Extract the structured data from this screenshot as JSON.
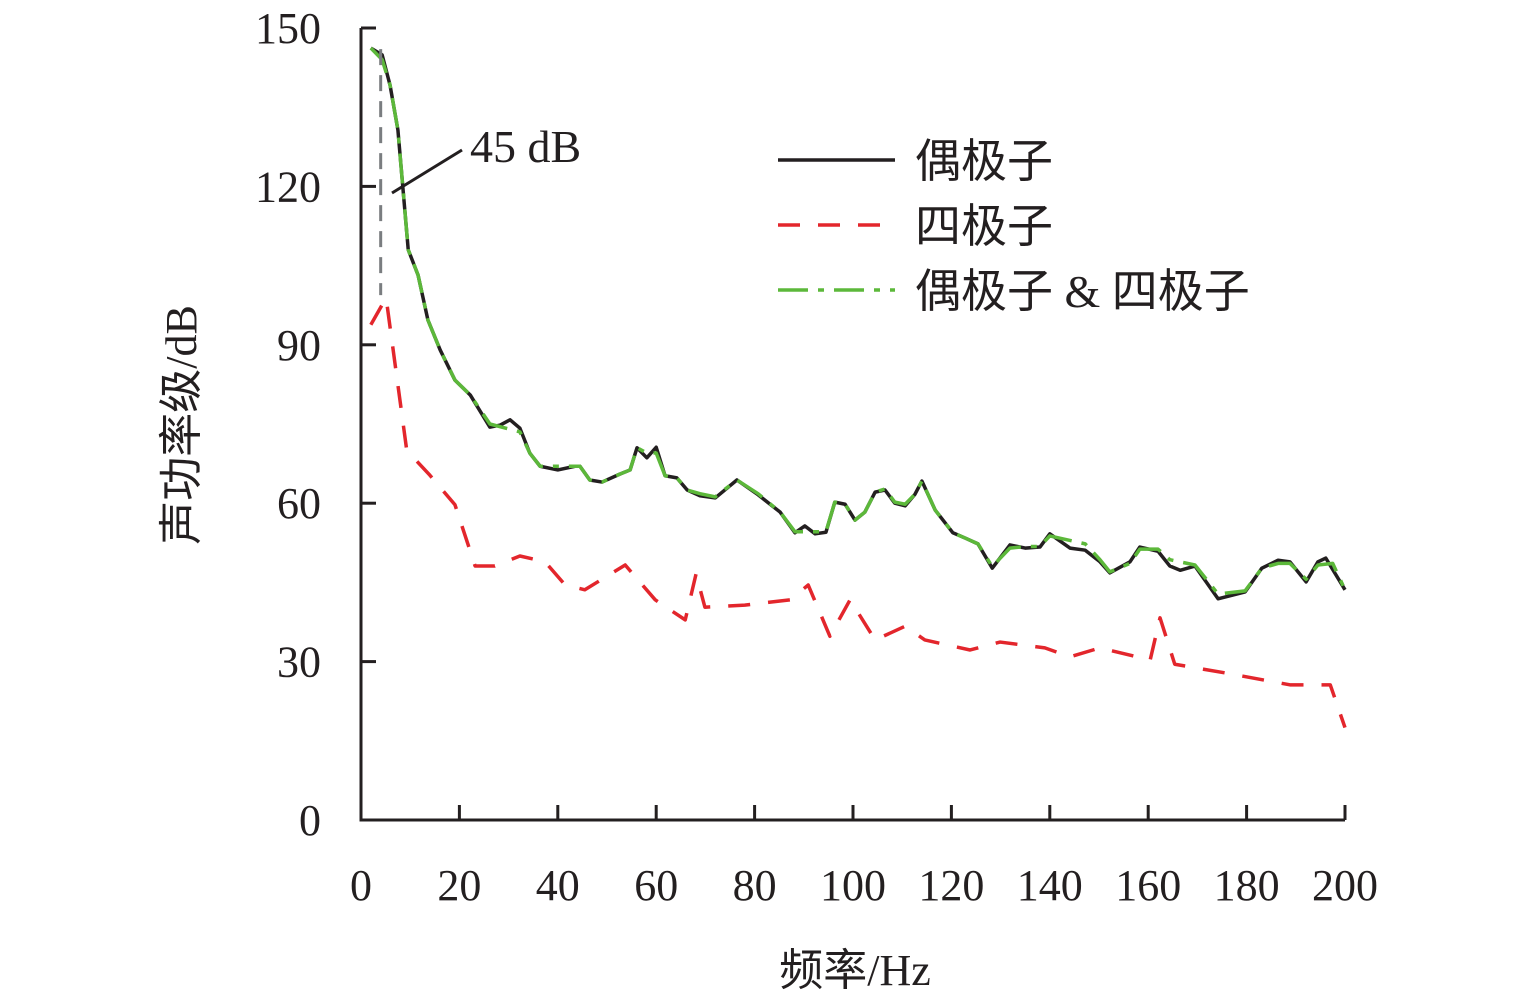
{
  "chart_data": {
    "type": "line",
    "title": "",
    "xlabel": "频率/Hz",
    "ylabel": "声功率级/dB",
    "xlim": [
      0,
      200
    ],
    "ylim": [
      0,
      150
    ],
    "xticks": [
      0,
      20,
      40,
      60,
      80,
      100,
      120,
      140,
      160,
      180,
      200
    ],
    "yticks": [
      0,
      30,
      60,
      90,
      120,
      150
    ],
    "grid": false,
    "legend_position": "top-right",
    "annotation": {
      "text": "45 dB",
      "x": 4,
      "y_from": 99.4,
      "y_to": 146
    },
    "series": [
      {
        "name": "偶极子",
        "color": "#231f20",
        "style": "solid",
        "x": [
          2,
          4.3,
          5.9,
          7.5,
          9.6,
          11.6,
          13.6,
          16.1,
          19.1,
          22.2,
          26.2,
          28.3,
          30.3,
          32.3,
          34.3,
          36.4,
          40,
          43.5,
          44.5,
          46.5,
          49,
          52.6,
          54.7,
          56.1,
          58.1,
          60,
          61.8,
          64.2,
          66.3,
          68.9,
          72,
          76.4,
          80.7,
          85.2,
          88.2,
          90.2,
          92.3,
          94.5,
          96.3,
          98.4,
          100.4,
          102.4,
          104.5,
          106.5,
          108.5,
          110.6,
          112.6,
          114,
          116.7,
          120.3,
          122.8,
          125.4,
          128.3,
          131.9,
          135,
          138,
          140,
          144.1,
          147.2,
          150.2,
          152.2,
          156.3,
          158.3,
          162,
          164.4,
          166.5,
          169.5,
          174.2,
          179.7,
          183.1,
          186.4,
          188.8,
          192.1,
          194.5,
          196.1,
          200
        ],
        "y": [
          146.2,
          144.9,
          139.2,
          130.7,
          108,
          103.2,
          94.7,
          89,
          83.3,
          80.5,
          74.4,
          74.8,
          75.8,
          74.2,
          69.5,
          67,
          66.3,
          67,
          67,
          64.4,
          64,
          65.5,
          66.3,
          70.5,
          68.6,
          70.6,
          65.2,
          64.8,
          62.5,
          61.4,
          61,
          64.4,
          61.6,
          58.3,
          54.4,
          55.7,
          54.2,
          54.5,
          60.2,
          59.8,
          56.8,
          58.3,
          62.1,
          62.5,
          60,
          59.5,
          61.7,
          64.2,
          58.7,
          54.4,
          53.4,
          52.3,
          47.7,
          52.1,
          51.5,
          51.7,
          54.2,
          51.5,
          51.1,
          48.9,
          46.8,
          48.9,
          51.7,
          50.9,
          48.1,
          47.3,
          48.1,
          41.9,
          43.2,
          47.7,
          49.2,
          48.9,
          45.1,
          48.9,
          49.6,
          43.6
        ]
      },
      {
        "name": "四极子",
        "color": "#e3262c",
        "style": "dashed",
        "x": [
          2,
          5.1,
          9.3,
          14,
          19.1,
          23.2,
          27.2,
          32.3,
          37.4,
          41.5,
          45.5,
          53.7,
          59.8,
          65.9,
          68.1,
          69.9,
          78,
          87.2,
          90.9,
          95.3,
          99.4,
          104.5,
          110.6,
          114.6,
          123.8,
          129.9,
          139,
          144.1,
          150.2,
          160.4,
          162.4,
          165.4,
          176.6,
          188.8,
          197,
          200
        ],
        "y": [
          93.8,
          98.9,
          70,
          65.3,
          59.7,
          48.1,
          48.1,
          50,
          48.9,
          44.5,
          43.6,
          48.3,
          41.7,
          37.9,
          46.6,
          40.3,
          40.7,
          41.7,
          44.5,
          34.8,
          41.7,
          34.1,
          36.7,
          34.1,
          32.2,
          33.7,
          32.6,
          30.9,
          32.6,
          30.3,
          38.3,
          29.5,
          27.7,
          25.6,
          25.6,
          17.5
        ]
      },
      {
        "name": "偶极子 & 四极子",
        "color": "#5cb83a",
        "style": "dashdot",
        "x": [
          2,
          4.3,
          5.9,
          7.5,
          9.6,
          11.6,
          13.6,
          16.1,
          19.1,
          22.2,
          26.2,
          32.3,
          34.3,
          36.4,
          40,
          44.5,
          46.5,
          49,
          52.6,
          54.7,
          56.1,
          58.1,
          60,
          61.8,
          64.2,
          66.3,
          68.9,
          72,
          76.4,
          80.7,
          85.2,
          88.2,
          92.3,
          94.5,
          96.3,
          98.4,
          100.4,
          102.4,
          104.5,
          106.5,
          108.5,
          110.6,
          112.6,
          114,
          116.7,
          120.3,
          122.8,
          125.4,
          128.3,
          131.9,
          135,
          138,
          140,
          147.2,
          150.2,
          152.2,
          156.3,
          158.3,
          162,
          164.4,
          169.5,
          174.2,
          179.7,
          183.1,
          186.4,
          188.8,
          192.1,
          194.5,
          197.5,
          200
        ],
        "y": [
          146.2,
          144,
          139.2,
          130.7,
          108,
          103.2,
          94.7,
          89,
          83.3,
          80.5,
          75,
          73.5,
          69.5,
          67,
          67,
          67,
          64.4,
          64,
          65.5,
          66.3,
          70.5,
          69.5,
          69.5,
          65.2,
          64.8,
          62.5,
          61.8,
          61.2,
          64.4,
          61.8,
          58.3,
          54.6,
          54.6,
          54.6,
          60.2,
          59.8,
          56.8,
          58.3,
          62.1,
          62.7,
          60.2,
          59.8,
          61.7,
          64.2,
          58.7,
          54.4,
          53.4,
          52.3,
          48,
          51.5,
          51.8,
          51.8,
          53.8,
          52.3,
          49.3,
          47,
          48.6,
          51.3,
          51.3,
          49.3,
          48.3,
          42.8,
          43.4,
          47.7,
          48.6,
          48.6,
          45.6,
          48.3,
          48.6,
          43.6
        ]
      }
    ]
  }
}
